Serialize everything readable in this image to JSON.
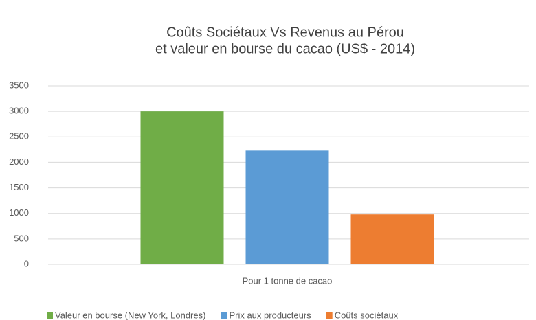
{
  "chart_data": {
    "type": "bar",
    "title": [
      "Coûts Sociétaux Vs Revenus au Pérou",
      "et valeur en bourse du cacao (US$ - 2014)"
    ],
    "categories": [
      "Pour 1 tonne de cacao"
    ],
    "series": [
      {
        "name": "Valeur en bourse (New York, Londres)",
        "color": "#70ad47",
        "values": [
          3000
        ]
      },
      {
        "name": "Prix aux producteurs",
        "color": "#5b9bd5",
        "values": [
          2230
        ]
      },
      {
        "name": "Coûts sociétaux",
        "color": "#ed7d31",
        "values": [
          980
        ]
      }
    ],
    "ylim": [
      0,
      3500
    ],
    "yticks": [
      0,
      500,
      1000,
      1500,
      2000,
      2500,
      3000,
      3500
    ],
    "grid": true,
    "legend": "bottom"
  }
}
